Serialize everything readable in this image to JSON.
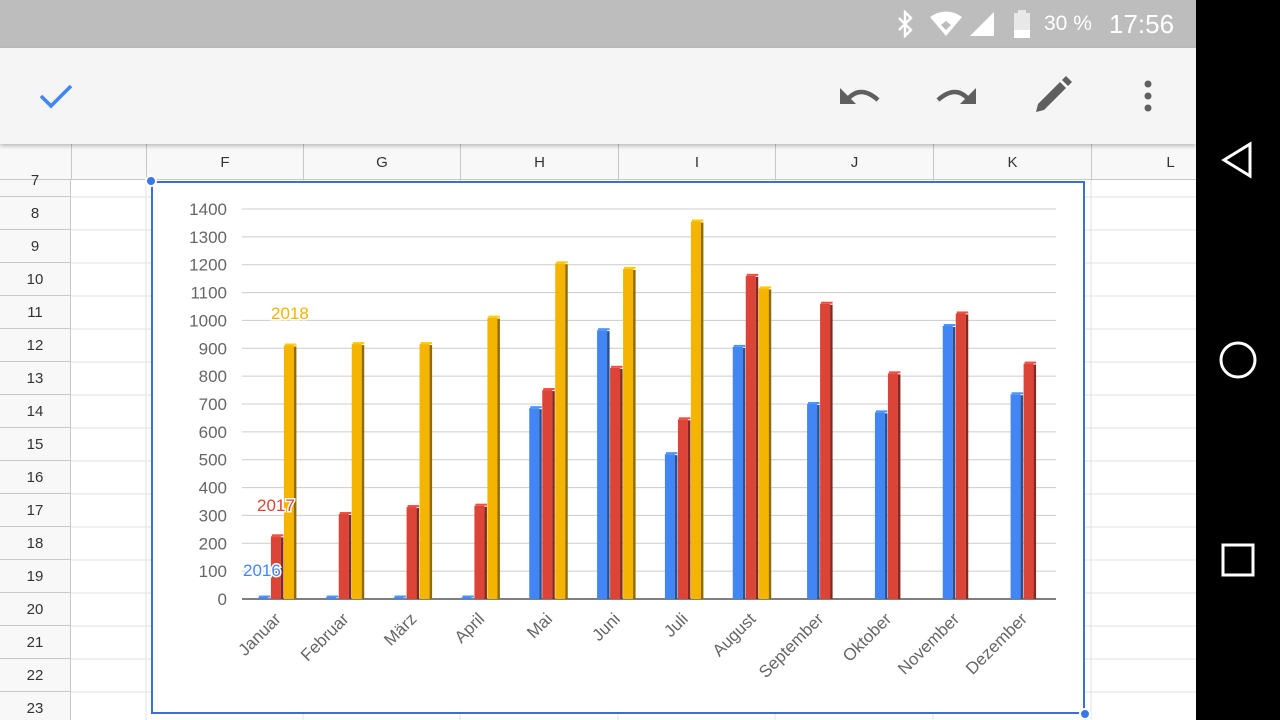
{
  "status_bar": {
    "battery_text": "30 %",
    "time": "17:56",
    "icons": [
      "bluetooth-icon",
      "wifi-icon",
      "signal-icon",
      "battery-icon"
    ]
  },
  "toolbar": {
    "icons": [
      "check-icon",
      "undo-icon",
      "redo-icon",
      "edit-icon",
      "more-icon"
    ],
    "accent_color": "#4285f4"
  },
  "sheet": {
    "columns": [
      "F",
      "G",
      "H",
      "I",
      "J",
      "K",
      "L"
    ],
    "rows": [
      "7",
      "8",
      "9",
      "10",
      "11",
      "12",
      "13",
      "14",
      "15",
      "16",
      "17",
      "18",
      "19",
      "20",
      "21",
      "22",
      "23"
    ]
  },
  "chart_data": {
    "type": "bar",
    "title": "",
    "xlabel": "",
    "ylabel": "",
    "ylim": [
      0,
      1400
    ],
    "yticks": [
      "0",
      "100",
      "200",
      "300",
      "400",
      "500",
      "600",
      "700",
      "800",
      "900",
      "1000",
      "1100",
      "1200",
      "1300",
      "1400"
    ],
    "categories": [
      "Januar",
      "Februar",
      "März",
      "April",
      "Mai",
      "Juni",
      "Juli",
      "August",
      "September",
      "Oktober",
      "November",
      "Dezember"
    ],
    "series": [
      {
        "name": "2016",
        "color": "#4285f4",
        "values": [
          0,
          0,
          0,
          0,
          685,
          965,
          520,
          905,
          700,
          670,
          980,
          735
        ]
      },
      {
        "name": "2017",
        "color": "#db4437",
        "values": [
          225,
          305,
          330,
          335,
          750,
          830,
          645,
          1160,
          1060,
          810,
          1025,
          845
        ]
      },
      {
        "name": "2018",
        "color": "#f4b400",
        "values": [
          910,
          915,
          915,
          1010,
          1205,
          1185,
          1355,
          1115,
          null,
          null,
          null,
          null
        ]
      }
    ],
    "legend_position": "inline-left",
    "grid": true
  }
}
